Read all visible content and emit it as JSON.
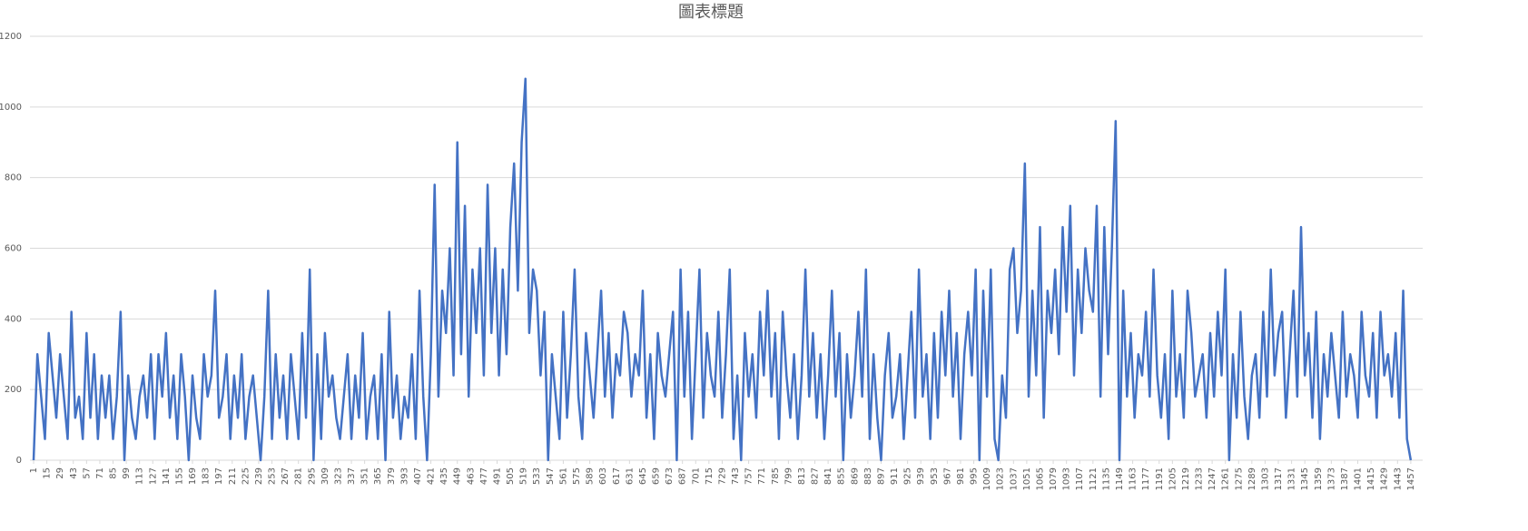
{
  "chart_data": {
    "type": "line",
    "title": "圖表標題",
    "x": [
      1,
      5,
      9,
      13,
      17,
      21,
      25,
      29,
      33,
      37,
      41,
      45,
      49,
      53,
      57,
      61,
      65,
      69,
      73,
      77,
      81,
      85,
      89,
      93,
      97,
      101,
      105,
      109,
      113,
      117,
      121,
      125,
      129,
      133,
      137,
      141,
      145,
      149,
      153,
      157,
      161,
      165,
      169,
      173,
      177,
      181,
      185,
      189,
      193,
      197,
      201,
      205,
      209,
      213,
      217,
      221,
      225,
      229,
      233,
      237,
      241,
      245,
      249,
      253,
      257,
      261,
      265,
      269,
      273,
      277,
      281,
      285,
      289,
      293,
      297,
      301,
      305,
      309,
      313,
      317,
      321,
      325,
      329,
      333,
      337,
      341,
      345,
      349,
      353,
      357,
      361,
      365,
      369,
      373,
      377,
      381,
      385,
      389,
      393,
      397,
      401,
      405,
      409,
      413,
      417,
      421,
      425,
      429,
      433,
      437,
      441,
      445,
      449,
      453,
      457,
      461,
      465,
      469,
      473,
      477,
      481,
      485,
      489,
      493,
      497,
      501,
      505,
      509,
      513,
      517,
      521,
      525,
      529,
      533,
      537,
      541,
      545,
      549,
      553,
      557,
      561,
      565,
      569,
      573,
      577,
      581,
      585,
      589,
      593,
      597,
      601,
      605,
      609,
      613,
      617,
      621,
      625,
      629,
      633,
      637,
      641,
      645,
      649,
      653,
      657,
      661,
      665,
      669,
      673,
      677,
      681,
      685,
      689,
      693,
      697,
      701,
      705,
      709,
      713,
      717,
      721,
      725,
      729,
      733,
      737,
      741,
      745,
      749,
      753,
      757,
      761,
      765,
      769,
      773,
      777,
      781,
      785,
      789,
      793,
      797,
      801,
      805,
      809,
      813,
      817,
      821,
      825,
      829,
      833,
      837,
      841,
      845,
      849,
      853,
      857,
      861,
      865,
      869,
      873,
      877,
      881,
      885,
      889,
      893,
      897,
      901,
      905,
      909,
      913,
      917,
      921,
      925,
      929,
      933,
      937,
      941,
      945,
      949,
      953,
      957,
      961,
      965,
      969,
      973,
      977,
      981,
      985,
      989,
      993,
      997,
      1001,
      1005,
      1009,
      1013,
      1017,
      1021,
      1025,
      1029,
      1033,
      1037,
      1041,
      1045,
      1049,
      1053,
      1057,
      1061,
      1065,
      1069,
      1073,
      1077,
      1081,
      1085,
      1089,
      1093,
      1097,
      1101,
      1105,
      1109,
      1113,
      1117,
      1121,
      1125,
      1129,
      1133,
      1137,
      1141,
      1145,
      1149,
      1153,
      1157,
      1161,
      1165,
      1169,
      1173,
      1177,
      1181,
      1185,
      1189,
      1193,
      1197,
      1201,
      1205,
      1209,
      1213,
      1217,
      1221,
      1225,
      1229,
      1233,
      1237,
      1241,
      1245,
      1249,
      1253,
      1257,
      1261,
      1265,
      1269,
      1273,
      1277,
      1281,
      1285,
      1289,
      1293,
      1297,
      1301,
      1305,
      1309,
      1313,
      1317,
      1321,
      1325,
      1329,
      1333,
      1337,
      1341,
      1345,
      1349,
      1353,
      1357,
      1361,
      1365,
      1369,
      1373,
      1377,
      1381,
      1385,
      1389,
      1393,
      1397,
      1401,
      1405,
      1409,
      1413,
      1417,
      1421,
      1425,
      1429,
      1433,
      1437,
      1441,
      1445,
      1449,
      1453,
      1457
    ],
    "values": [
      0,
      300,
      180,
      60,
      360,
      240,
      120,
      300,
      180,
      60,
      420,
      120,
      180,
      60,
      360,
      120,
      300,
      60,
      240,
      120,
      240,
      60,
      180,
      420,
      0,
      240,
      120,
      60,
      180,
      240,
      120,
      300,
      60,
      300,
      180,
      360,
      120,
      240,
      60,
      300,
      180,
      0,
      240,
      120,
      60,
      300,
      180,
      240,
      480,
      120,
      180,
      300,
      60,
      240,
      120,
      300,
      60,
      180,
      240,
      120,
      0,
      180,
      480,
      60,
      300,
      120,
      240,
      60,
      300,
      180,
      60,
      360,
      120,
      540,
      0,
      300,
      60,
      360,
      180,
      240,
      120,
      60,
      180,
      300,
      60,
      240,
      120,
      360,
      60,
      180,
      240,
      60,
      300,
      0,
      420,
      120,
      240,
      60,
      180,
      120,
      300,
      60,
      480,
      180,
      0,
      300,
      780,
      180,
      480,
      360,
      600,
      240,
      900,
      300,
      720,
      180,
      540,
      360,
      600,
      240,
      780,
      360,
      600,
      240,
      540,
      300,
      660,
      840,
      480,
      900,
      1080,
      360,
      540,
      480,
      240,
      420,
      0,
      300,
      180,
      60,
      420,
      120,
      300,
      540,
      180,
      60,
      360,
      240,
      120,
      300,
      480,
      180,
      360,
      120,
      300,
      240,
      420,
      360,
      180,
      300,
      240,
      480,
      120,
      300,
      60,
      360,
      240,
      180,
      300,
      420,
      0,
      540,
      180,
      420,
      60,
      300,
      540,
      120,
      360,
      240,
      180,
      420,
      120,
      300,
      540,
      60,
      240,
      0,
      360,
      180,
      300,
      120,
      420,
      240,
      480,
      180,
      360,
      60,
      420,
      240,
      120,
      300,
      60,
      240,
      540,
      180,
      360,
      120,
      300,
      60,
      240,
      480,
      180,
      360,
      0,
      300,
      120,
      240,
      420,
      180,
      540,
      60,
      300,
      120,
      0,
      240,
      360,
      120,
      180,
      300,
      60,
      240,
      420,
      120,
      540,
      180,
      300,
      60,
      360,
      120,
      420,
      240,
      480,
      180,
      360,
      60,
      300,
      420,
      240,
      540,
      0,
      480,
      180,
      540,
      60,
      0,
      240,
      120,
      540,
      600,
      360,
      480,
      840,
      180,
      480,
      240,
      660,
      120,
      480,
      360,
      540,
      300,
      660,
      420,
      720,
      240,
      540,
      360,
      600,
      480,
      420,
      720,
      180,
      660,
      300,
      600,
      960,
      0,
      480,
      180,
      360,
      120,
      300,
      240,
      420,
      180,
      540,
      240,
      120,
      300,
      60,
      480,
      180,
      300,
      120,
      480,
      360,
      180,
      240,
      300,
      120,
      360,
      180,
      420,
      240,
      540,
      0,
      300,
      120,
      420,
      180,
      60,
      240,
      300,
      120,
      420,
      180,
      540,
      240,
      360,
      420,
      120,
      300,
      480,
      180,
      660,
      240,
      360,
      120,
      420,
      60,
      300,
      180,
      360,
      240,
      120,
      420,
      180,
      300,
      240,
      120,
      420,
      240,
      180,
      360,
      120,
      420,
      240,
      300,
      180,
      360,
      120,
      480,
      60,
      0
    ],
    "color": "#4472c4",
    "xlim": [
      1,
      1460
    ],
    "xticks": [
      1,
      15,
      29,
      43,
      57,
      71,
      85,
      99,
      113,
      127,
      141,
      155,
      169,
      183,
      197,
      211,
      225,
      239,
      253,
      267,
      281,
      295,
      309,
      323,
      337,
      351,
      365,
      379,
      393,
      407,
      421,
      435,
      449,
      463,
      477,
      491,
      505,
      519,
      533,
      547,
      561,
      575,
      589,
      603,
      617,
      631,
      645,
      659,
      673,
      687,
      701,
      715,
      729,
      743,
      757,
      771,
      785,
      799,
      813,
      827,
      841,
      855,
      869,
      883,
      897,
      911,
      925,
      939,
      953,
      967,
      981,
      995,
      1009,
      1023,
      1037,
      1051,
      1065,
      1079,
      1093,
      1107,
      1121,
      1135,
      1149,
      1163,
      1177,
      1191,
      1205,
      1219,
      1233,
      1247,
      1261,
      1275,
      1289,
      1303,
      1317,
      1331,
      1345,
      1359,
      1373,
      1387,
      1401,
      1415,
      1429,
      1443,
      1457
    ],
    "ylim": [
      0,
      1200
    ],
    "yticks": [
      0,
      200,
      400,
      600,
      800,
      1000,
      1200
    ],
    "grid": true
  }
}
